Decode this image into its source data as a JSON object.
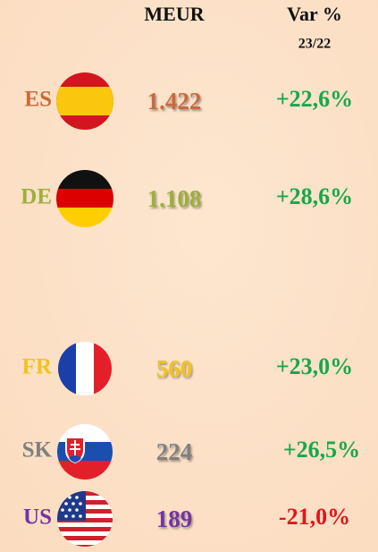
{
  "header": {
    "value_col": "MEUR",
    "change_col": "Var %",
    "change_period": "23/22"
  },
  "rows": [
    {
      "code": "ES",
      "value": "1.422",
      "change": "+22,6%",
      "color": "#c96a3c",
      "change_color": "#17a84c"
    },
    {
      "code": "DE",
      "value": "1.108",
      "change": "+28,6%",
      "color": "#9bb03c",
      "change_color": "#17a84c"
    },
    {
      "code": "FR",
      "value": "560",
      "change": "+23,0%",
      "color": "#f2c21c",
      "change_color": "#17a84c"
    },
    {
      "code": "SK",
      "value": "224",
      "change": "+26,5%",
      "color": "#808080",
      "change_color": "#17a84c"
    },
    {
      "code": "US",
      "value": "189",
      "change": "-21,0%",
      "color": "#7334a2",
      "change_color": "#e2141c"
    }
  ]
}
